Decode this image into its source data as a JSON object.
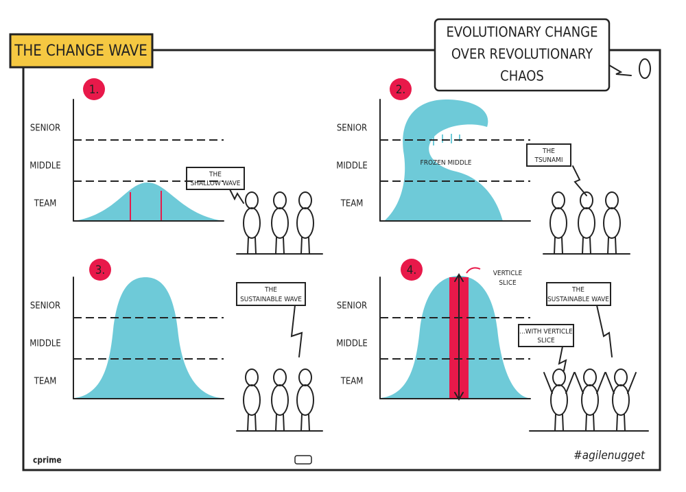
{
  "header": {
    "title": "THE CHANGE WAVE"
  },
  "callout": {
    "lines": [
      "EVOLUTIONARY CHANGE",
      "OVER REVOLUTIONARY",
      "CHAOS"
    ]
  },
  "panels": [
    {
      "number": "1.",
      "levels": [
        "SENIOR",
        "MIDDLE",
        "TEAM"
      ],
      "bubbles": [
        {
          "lines": [
            "THE",
            "SHALLOW WAVE"
          ]
        }
      ]
    },
    {
      "number": "2.",
      "levels": [
        "SENIOR",
        "MIDDLE",
        "TEAM"
      ],
      "annotation": [
        "FROZEN MIDDLE"
      ],
      "bubbles": [
        {
          "lines": [
            "THE",
            "TSUNAMI"
          ]
        }
      ]
    },
    {
      "number": "3.",
      "levels": [
        "SENIOR",
        "MIDDLE",
        "TEAM"
      ],
      "bubbles": [
        {
          "lines": [
            "THE",
            "SUSTAINABLE WAVE"
          ]
        }
      ]
    },
    {
      "number": "4.",
      "levels": [
        "SENIOR",
        "MIDDLE",
        "TEAM"
      ],
      "annotation": [
        "VERTICLE",
        "SLICE"
      ],
      "bubbles": [
        {
          "lines": [
            "THE",
            "SUSTAINABLE WAVE"
          ]
        },
        {
          "lines": [
            "...WITH VERTICLE",
            "SLICE"
          ]
        }
      ]
    }
  ],
  "footer": {
    "brand": "cprime",
    "hashtag": "#agilenugget"
  }
}
